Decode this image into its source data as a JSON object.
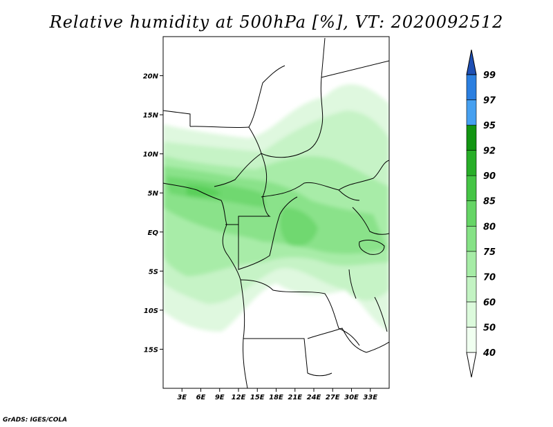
{
  "title": "Relative humidity at 500hPa [%], VT: 2020092512",
  "credit": "GrADS: IGES/COLA",
  "map": {
    "lon_range": [
      0,
      36
    ],
    "lat_range": [
      -20,
      25
    ],
    "lat_ticks": [
      {
        "value": 20,
        "label": "20N"
      },
      {
        "value": 15,
        "label": "15N"
      },
      {
        "value": 10,
        "label": "10N"
      },
      {
        "value": 5,
        "label": "5N"
      },
      {
        "value": 0,
        "label": "EQ"
      },
      {
        "value": -5,
        "label": "5S"
      },
      {
        "value": -10,
        "label": "10S"
      },
      {
        "value": -15,
        "label": "15S"
      }
    ],
    "lon_ticks": [
      {
        "value": 3,
        "label": "3E"
      },
      {
        "value": 6,
        "label": "6E"
      },
      {
        "value": 9,
        "label": "9E"
      },
      {
        "value": 12,
        "label": "12E"
      },
      {
        "value": 15,
        "label": "15E"
      },
      {
        "value": 18,
        "label": "18E"
      },
      {
        "value": 21,
        "label": "21E"
      },
      {
        "value": 24,
        "label": "24E"
      },
      {
        "value": 27,
        "label": "27E"
      },
      {
        "value": 30,
        "label": "30E"
      },
      {
        "value": 33,
        "label": "33E"
      }
    ]
  },
  "colorbar": {
    "levels": [
      {
        "label": "40",
        "color": "#f0fff0"
      },
      {
        "label": "50",
        "color": "#dcfadc"
      },
      {
        "label": "60",
        "color": "#c3f3c3"
      },
      {
        "label": "70",
        "color": "#a6eca6"
      },
      {
        "label": "75",
        "color": "#86e286"
      },
      {
        "label": "80",
        "color": "#66d566"
      },
      {
        "label": "85",
        "color": "#45c545"
      },
      {
        "label": "90",
        "color": "#28ae28"
      },
      {
        "label": "92",
        "color": "#129512"
      },
      {
        "label": "95",
        "color": "#46a0f0"
      },
      {
        "label": "97",
        "color": "#2b7fe0"
      },
      {
        "label": "99",
        "color": "#1656c8"
      }
    ],
    "low_color": "#ffffff",
    "high_color": "#1e4fb4"
  }
}
